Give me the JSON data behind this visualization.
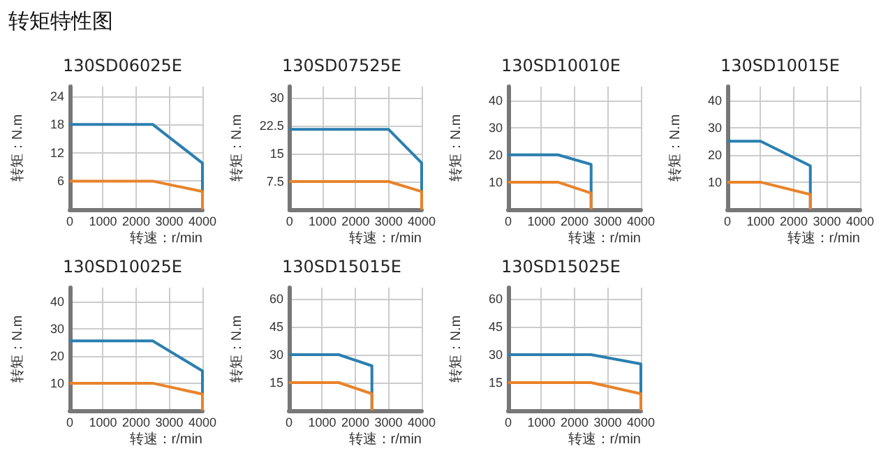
{
  "chart_data": [
    {
      "type": "line",
      "title": "130SD06025E",
      "annotations": [
        "转矩特性图"
      ],
      "xlabel": "转速：r/min",
      "ylabel": "转矩：N.m",
      "xlim": [
        0,
        4000
      ],
      "xticks": [
        0,
        1000,
        2000,
        3000,
        4000
      ],
      "ylim": [
        0,
        26
      ],
      "yticks": [
        6,
        12,
        18,
        24
      ],
      "grid": true,
      "marker": "none",
      "line_style": "solid",
      "series": [
        {
          "color": "#2a7fb0",
          "x": [
            0,
            2500,
            4000,
            4000
          ],
          "values": [
            18,
            18,
            9.8,
            0
          ]
        },
        {
          "color": "#e8832a",
          "x": [
            0,
            2500,
            4000,
            4000
          ],
          "values": [
            6,
            6,
            3.8,
            0
          ]
        }
      ]
    },
    {
      "type": "line",
      "title": "130SD07525E",
      "xlabel": "转速：r/min",
      "ylabel": "转矩：N.m",
      "xlim": [
        0,
        4000
      ],
      "xticks": [
        0,
        1000,
        2000,
        3000,
        4000
      ],
      "ylim": [
        0,
        33
      ],
      "yticks": [
        7.5,
        15,
        22.5,
        30
      ],
      "grid": true,
      "marker": "none",
      "line_style": "solid",
      "series": [
        {
          "color": "#2a7fb0",
          "x": [
            0,
            3000,
            4000,
            4000
          ],
          "values": [
            21.5,
            21.5,
            12.5,
            0
          ]
        },
        {
          "color": "#e8832a",
          "x": [
            0,
            3000,
            4000,
            4000
          ],
          "values": [
            7.5,
            7.5,
            4.8,
            0
          ]
        }
      ]
    },
    {
      "type": "line",
      "title": "130SD10010E",
      "xlabel": "转速：r/min",
      "ylabel": "转矩：N.m",
      "xlim": [
        0,
        4000
      ],
      "xticks": [
        0,
        1000,
        2000,
        3000,
        4000
      ],
      "ylim": [
        0,
        45
      ],
      "yticks": [
        10,
        20,
        30,
        40
      ],
      "grid": true,
      "marker": "none",
      "line_style": "solid",
      "series": [
        {
          "color": "#2a7fb0",
          "x": [
            0,
            1500,
            2500,
            2500
          ],
          "values": [
            20,
            20,
            16.5,
            0
          ]
        },
        {
          "color": "#e8832a",
          "x": [
            0,
            1500,
            2500,
            2500
          ],
          "values": [
            10,
            10,
            6,
            0
          ]
        }
      ]
    },
    {
      "type": "line",
      "title": "130SD10015E",
      "xlabel": "转速：r/min",
      "ylabel": "转矩：N.m",
      "xlim": [
        0,
        4000
      ],
      "xticks": [
        0,
        1000,
        2000,
        3000,
        4000
      ],
      "ylim": [
        0,
        45
      ],
      "yticks": [
        10,
        20,
        30,
        40
      ],
      "grid": true,
      "marker": "none",
      "line_style": "solid",
      "series": [
        {
          "color": "#2a7fb0",
          "x": [
            0,
            1000,
            2500,
            2500
          ],
          "values": [
            25,
            25,
            16,
            0
          ]
        },
        {
          "color": "#e8832a",
          "x": [
            0,
            1000,
            2500,
            2500
          ],
          "values": [
            10,
            10,
            5.5,
            0
          ]
        }
      ]
    },
    {
      "type": "line",
      "title": "130SD10025E",
      "xlabel": "转速：r/min",
      "ylabel": "转矩：N.m",
      "xlim": [
        0,
        4000
      ],
      "xticks": [
        0,
        1000,
        2000,
        3000,
        4000
      ],
      "ylim": [
        0,
        45
      ],
      "yticks": [
        10,
        20,
        30,
        40
      ],
      "grid": true,
      "marker": "none",
      "line_style": "solid",
      "series": [
        {
          "color": "#2a7fb0",
          "x": [
            0,
            2500,
            4000,
            4000
          ],
          "values": [
            25.5,
            25.5,
            14.5,
            0
          ]
        },
        {
          "color": "#e8832a",
          "x": [
            0,
            2500,
            4000,
            4000
          ],
          "values": [
            10,
            10,
            6,
            0
          ]
        }
      ]
    },
    {
      "type": "line",
      "title": "130SD15015E",
      "xlabel": "转速：r/min",
      "ylabel": "转矩：N.m",
      "xlim": [
        0,
        4000
      ],
      "xticks": [
        0,
        1000,
        2000,
        3000,
        4000
      ],
      "ylim": [
        0,
        66
      ],
      "yticks": [
        15,
        30,
        45,
        60
      ],
      "grid": true,
      "marker": "none",
      "line_style": "solid",
      "series": [
        {
          "color": "#2a7fb0",
          "x": [
            0,
            1500,
            2500,
            2500
          ],
          "values": [
            30,
            30,
            24,
            0
          ]
        },
        {
          "color": "#e8832a",
          "x": [
            0,
            1500,
            2500,
            2500
          ],
          "values": [
            15,
            15,
            9,
            0
          ]
        }
      ]
    },
    {
      "type": "line",
      "title": "130SD15025E",
      "xlabel": "转速：r/min",
      "ylabel": "转矩：N.m",
      "xlim": [
        0,
        4000
      ],
      "xticks": [
        0,
        1000,
        2000,
        3000,
        4000
      ],
      "ylim": [
        0,
        66
      ],
      "yticks": [
        15,
        30,
        45,
        60
      ],
      "grid": true,
      "marker": "none",
      "line_style": "solid",
      "series": [
        {
          "color": "#2a7fb0",
          "x": [
            0,
            2500,
            4000,
            4000
          ],
          "values": [
            30,
            30,
            25,
            0
          ]
        },
        {
          "color": "#e8832a",
          "x": [
            0,
            2500,
            4000,
            4000
          ],
          "values": [
            15,
            15,
            9,
            0
          ]
        }
      ]
    }
  ]
}
